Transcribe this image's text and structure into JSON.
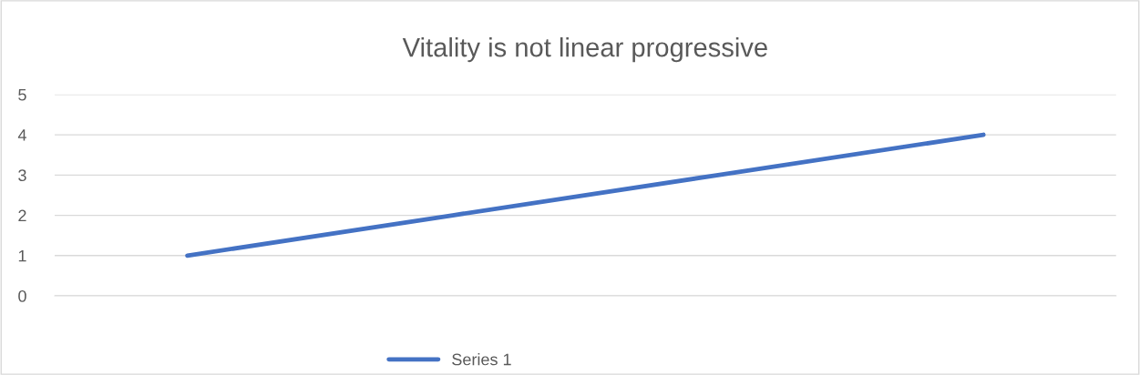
{
  "chart_data": {
    "type": "line",
    "title": "Vitality is not linear progressive",
    "categories": [
      null,
      null,
      null,
      null
    ],
    "series": [
      {
        "name": "Series 1",
        "color": "#4472c4",
        "values": [
          1,
          2,
          3,
          4
        ]
      }
    ],
    "ylim": [
      0,
      5
    ],
    "yticks": [
      0,
      1,
      2,
      3,
      4,
      5
    ],
    "grid": "y",
    "legend": "bottom",
    "marker": "none",
    "line_style": "solid"
  }
}
